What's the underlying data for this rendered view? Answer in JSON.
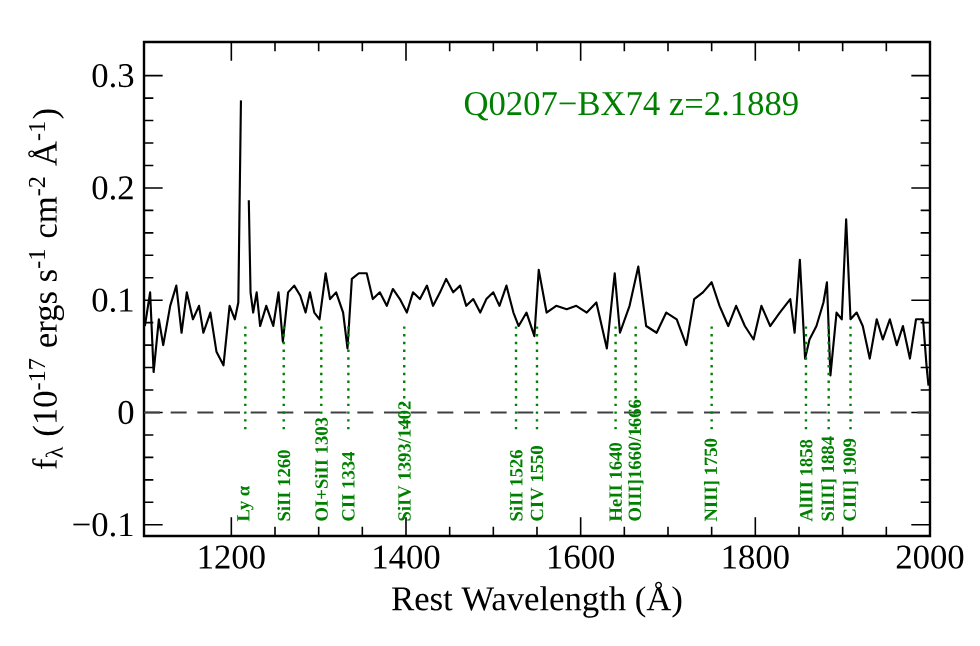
{
  "chart_data": {
    "type": "line",
    "title": "Q0207−BX74 z=2.1889",
    "xlabel": "Rest Wavelength (Å)",
    "ylabel": "f$_{λ}$ (10$^{-17}$ ergs s$^{-1}$ cm$^{-2}$ Å$^{-1}$)",
    "x": [
      1101,
      1107,
      1111,
      1117,
      1122,
      1130,
      1137,
      1143,
      1149,
      1156,
      1163,
      1168,
      1176,
      1183,
      1191,
      1198,
      1204,
      1208,
      1211,
      1213,
      1217.5,
      1220,
      1222,
      1225,
      1229,
      1233,
      1240,
      1248,
      1254,
      1259,
      1265,
      1272,
      1279,
      1285,
      1290,
      1295,
      1301,
      1308,
      1313,
      1320,
      1328,
      1333,
      1338,
      1346,
      1355,
      1362,
      1370,
      1378,
      1385,
      1393,
      1401,
      1408,
      1416,
      1424,
      1431,
      1439,
      1446,
      1454,
      1462,
      1469,
      1477,
      1485,
      1492,
      1500,
      1507,
      1515,
      1523,
      1529,
      1538,
      1547,
      1552,
      1561,
      1572,
      1584,
      1595,
      1607,
      1618,
      1630,
      1639,
      1645,
      1656,
      1666,
      1675,
      1687,
      1698,
      1710,
      1721,
      1730,
      1740,
      1750,
      1759,
      1769,
      1778,
      1788,
      1798,
      1807,
      1817,
      1828,
      1840,
      1845,
      1851,
      1857,
      1862,
      1870,
      1878,
      1882,
      1886,
      1893,
      1899,
      1904,
      1909,
      1916,
      1923,
      1931,
      1939,
      1946,
      1954,
      1962,
      1969,
      1977,
      1984,
      1992,
      1996,
      1998.3
    ],
    "values": [
      0.077,
      0.107,
      0.036,
      0.083,
      0.06,
      0.095,
      0.113,
      0.071,
      0.107,
      0.083,
      0.095,
      0.071,
      0.089,
      0.054,
      0.042,
      0.095,
      0.083,
      0.098,
      0.278,
      null,
      null,
      0.189,
      0.107,
      0.089,
      0.107,
      0.077,
      0.095,
      0.077,
      0.107,
      0.063,
      0.107,
      0.113,
      0.104,
      0.089,
      0.107,
      0.089,
      0.083,
      0.124,
      0.101,
      0.107,
      0.089,
      0.057,
      0.119,
      0.124,
      0.124,
      0.101,
      0.107,
      0.095,
      0.11,
      0.101,
      0.089,
      0.107,
      0.101,
      0.113,
      0.095,
      0.107,
      0.119,
      0.107,
      0.113,
      0.095,
      0.101,
      0.089,
      0.101,
      0.107,
      0.095,
      0.113,
      0.089,
      0.077,
      0.089,
      0.068,
      0.127,
      0.089,
      0.095,
      0.092,
      0.095,
      0.089,
      0.098,
      0.057,
      0.124,
      0.071,
      0.095,
      0.13,
      0.077,
      0.071,
      0.089,
      0.083,
      0.06,
      0.101,
      0.107,
      0.116,
      0.095,
      0.077,
      0.095,
      0.077,
      0.065,
      0.095,
      0.077,
      0.089,
      0.101,
      0.071,
      0.136,
      0.048,
      0.065,
      0.077,
      0.098,
      0.116,
      0.033,
      0.089,
      0.083,
      0.172,
      0.083,
      0.089,
      0.077,
      0.048,
      0.083,
      0.065,
      0.083,
      0.06,
      0.077,
      0.048,
      0.083,
      0.083,
      0.042,
      0.024
    ],
    "color": "#000000",
    "xlim": [
      1100,
      2000
    ],
    "xticks": [
      1200,
      1400,
      1600,
      1800,
      2000
    ],
    "ylim": [
      -0.11,
      0.33
    ],
    "yticks": [
      {
        "value": -0.1,
        "label": "−0.1"
      },
      0,
      0.1,
      0.2,
      0.3
    ],
    "grid": false,
    "marker": "none",
    "line_style": "solid",
    "ref_lines": [
      {
        "axis": "y",
        "value": 0,
        "color": "#404040",
        "line_style": "dashed"
      },
      {
        "axis": "x",
        "value": 1216,
        "label": "Ly α",
        "color": "#008000",
        "line_style": "dotted"
      },
      {
        "axis": "x",
        "value": 1260,
        "label": "SiII 1260",
        "color": "#008000",
        "line_style": "dotted"
      },
      {
        "axis": "x",
        "value": 1303,
        "label": "OI+SiII 1303",
        "color": "#008000",
        "line_style": "dotted"
      },
      {
        "axis": "x",
        "value": 1334,
        "label": "CII 1334",
        "color": "#008000",
        "line_style": "dotted"
      },
      {
        "axis": "x",
        "value": 1398,
        "label": "SiIV 1393/1402",
        "color": "#008000",
        "line_style": "dotted"
      },
      {
        "axis": "x",
        "value": 1526,
        "label": "SiII 1526",
        "color": "#008000",
        "line_style": "dotted"
      },
      {
        "axis": "x",
        "value": 1550,
        "label": "CIV 1550",
        "color": "#008000",
        "line_style": "dotted"
      },
      {
        "axis": "x",
        "value": 1640,
        "label": "HeII 1640",
        "color": "#008000",
        "line_style": "dotted"
      },
      {
        "axis": "x",
        "value": 1663,
        "label": "OIII]1660/1666",
        "color": "#008000",
        "line_style": "dotted"
      },
      {
        "axis": "x",
        "value": 1750,
        "label": "NIII] 1750",
        "color": "#008000",
        "line_style": "dotted"
      },
      {
        "axis": "x",
        "value": 1858,
        "label": "AlIII 1858",
        "color": "#008000",
        "line_style": "dotted"
      },
      {
        "axis": "x",
        "value": 1884,
        "label": "SiIII] 1884",
        "color": "#008000",
        "line_style": "dotted"
      },
      {
        "axis": "x",
        "value": 1909,
        "label": "CIII] 1909",
        "color": "#008000",
        "line_style": "dotted"
      }
    ]
  }
}
